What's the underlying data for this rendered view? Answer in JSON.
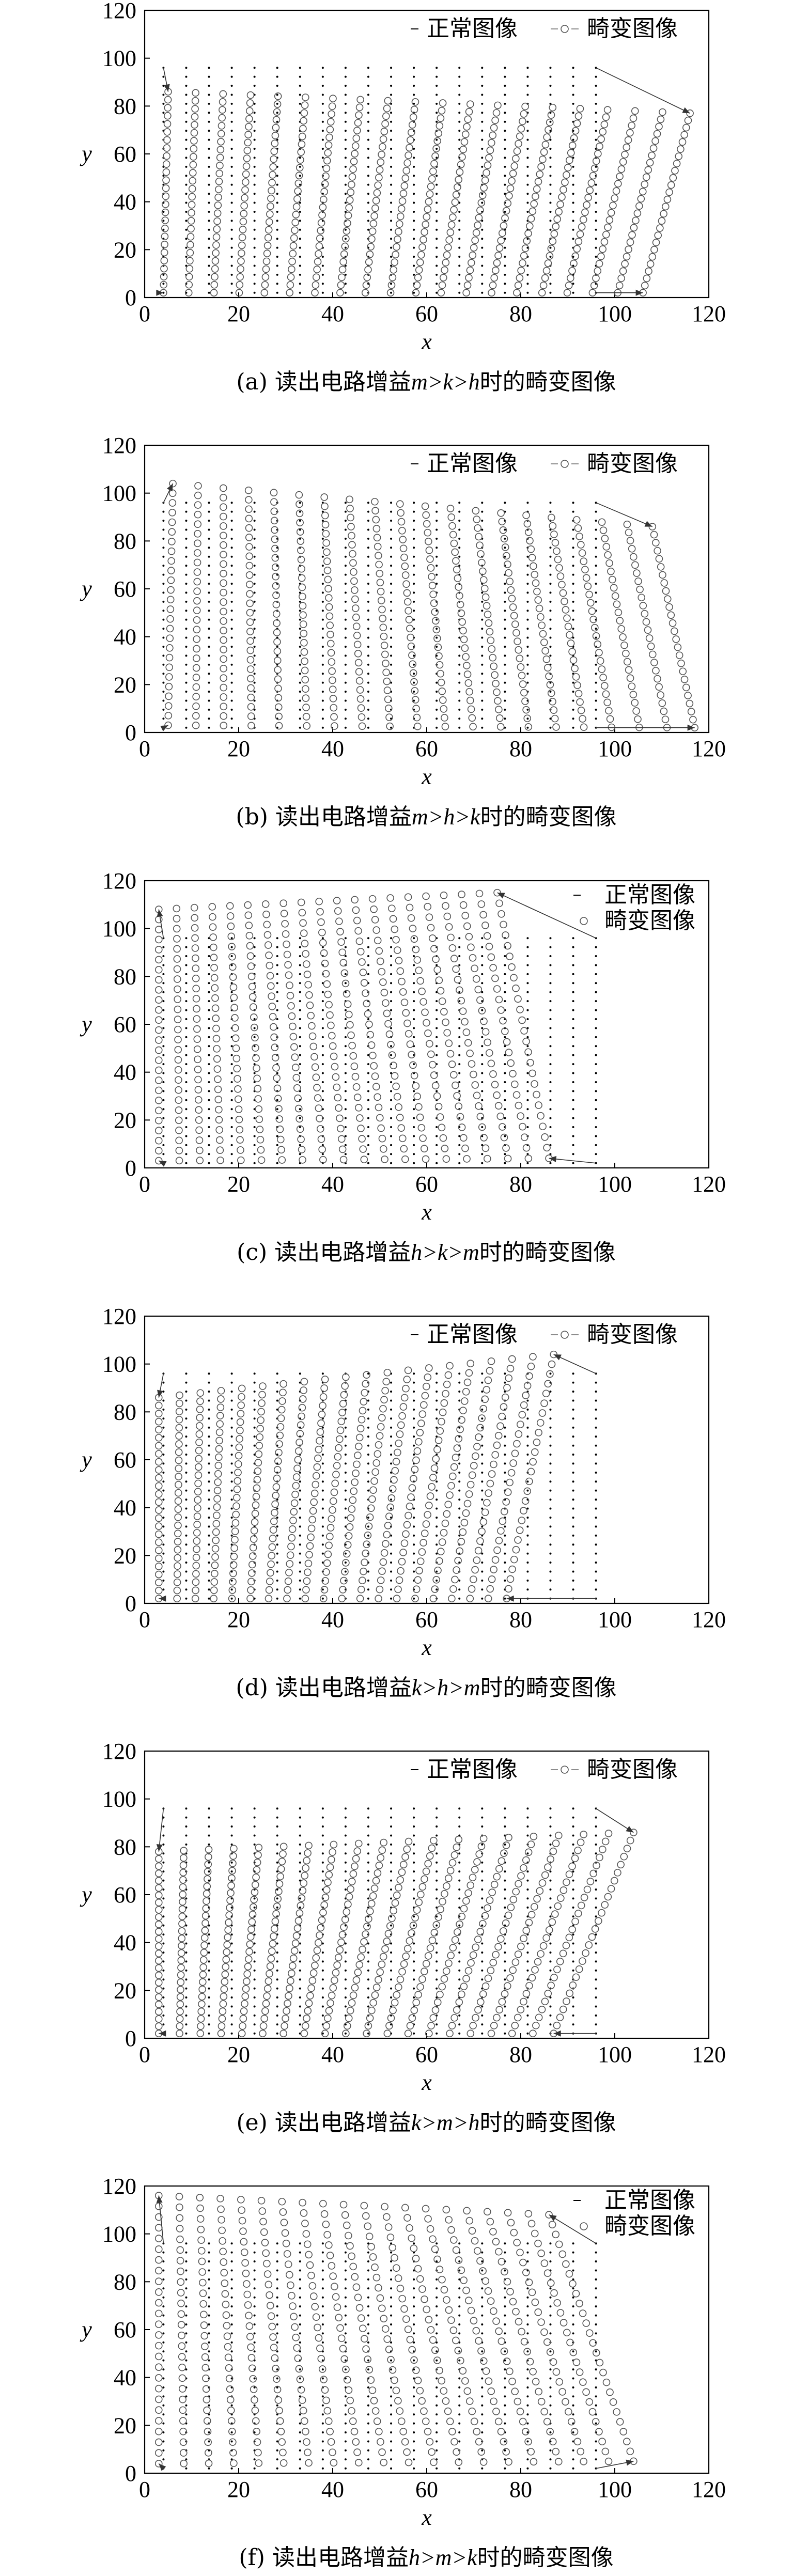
{
  "legend_normal": "正常图像",
  "legend_distorted": "畸变图像",
  "xlabel": "x",
  "ylabel": "y",
  "ticks": [
    "0",
    "20",
    "40",
    "60",
    "80",
    "100",
    "120"
  ],
  "chart_data": [
    {
      "type": "scatter",
      "caption_prefix": "(a) 读出电路增益",
      "caption_gain": "m>k>h",
      "caption_suffix": "时的畸变图像",
      "legend_position": "top-right",
      "xlim": [
        0,
        120
      ],
      "ylim": [
        0,
        120
      ],
      "series": [
        {
          "name": "正常图像",
          "grid": {
            "x": [
              4,
              96
            ],
            "y": [
              2,
              96
            ]
          }
        },
        {
          "name": "畸变图像",
          "corners": {
            "bl": [
              4,
              2
            ],
            "tl": [
              5,
              86
            ],
            "tr": [
              116,
              77
            ],
            "br": [
              106,
              2
            ]
          }
        }
      ]
    },
    {
      "type": "scatter",
      "caption_prefix": "(b) 读出电路增益",
      "caption_gain": "m>h>k",
      "caption_suffix": "时的畸变图像",
      "legend_position": "top-right",
      "xlim": [
        0,
        120
      ],
      "ylim": [
        0,
        120
      ],
      "series": [
        {
          "name": "正常图像",
          "grid": {
            "x": [
              4,
              96
            ],
            "y": [
              2,
              96
            ]
          }
        },
        {
          "name": "畸变图像",
          "corners": {
            "bl": [
              5,
              3
            ],
            "tl": [
              6,
              104
            ],
            "tr": [
              108,
              86
            ],
            "br": [
              117,
              2
            ]
          }
        }
      ]
    },
    {
      "type": "scatter",
      "caption_prefix": "(c) 读出电路增益",
      "caption_gain": "h>k>m",
      "caption_suffix": "时的畸变图像",
      "legend_position": "top-right",
      "xlim": [
        0,
        120
      ],
      "ylim": [
        0,
        120
      ],
      "series": [
        {
          "name": "正常图像",
          "grid": {
            "x": [
              4,
              96
            ],
            "y": [
              2,
              96
            ]
          }
        },
        {
          "name": "畸变图像",
          "corners": {
            "bl": [
              3,
              3
            ],
            "tl": [
              3,
              108
            ],
            "tr": [
              75,
              115
            ],
            "br": [
              86,
              4
            ]
          }
        }
      ]
    },
    {
      "type": "scatter",
      "caption_prefix": "(d) 读出电路增益",
      "caption_gain": "k>h>m",
      "caption_suffix": "时的畸变图像",
      "legend_position": "top-right",
      "xlim": [
        0,
        120
      ],
      "ylim": [
        0,
        120
      ],
      "series": [
        {
          "name": "正常图像",
          "grid": {
            "x": [
              4,
              96
            ],
            "y": [
              2,
              96
            ]
          }
        },
        {
          "name": "畸变图像",
          "corners": {
            "bl": [
              3,
              2
            ],
            "tl": [
              3,
              86
            ],
            "tr": [
              87,
              104
            ],
            "br": [
              77,
              2
            ]
          }
        }
      ]
    },
    {
      "type": "scatter",
      "caption_prefix": "(e) 读出电路增益",
      "caption_gain": "k>m>h",
      "caption_suffix": "时的畸变图像",
      "legend_position": "top-right",
      "xlim": [
        0,
        120
      ],
      "ylim": [
        0,
        120
      ],
      "series": [
        {
          "name": "正常图像",
          "grid": {
            "x": [
              4,
              96
            ],
            "y": [
              2,
              96
            ]
          }
        },
        {
          "name": "畸变图像",
          "corners": {
            "bl": [
              3,
              2
            ],
            "tl": [
              3,
              78
            ],
            "tr": [
              104,
              86
            ],
            "br": [
              87,
              2
            ]
          }
        }
      ]
    },
    {
      "type": "scatter",
      "caption_prefix": "(f) 读出电路增益",
      "caption_gain": "h>m>k",
      "caption_suffix": "时的畸变图像",
      "legend_position": "top-right",
      "xlim": [
        0,
        120
      ],
      "ylim": [
        0,
        120
      ],
      "series": [
        {
          "name": "正常图像",
          "grid": {
            "x": [
              4,
              96
            ],
            "y": [
              2,
              96
            ]
          }
        },
        {
          "name": "畸变图像",
          "corners": {
            "bl": [
              3,
              4
            ],
            "tl": [
              3,
              116
            ],
            "tr": [
              86,
              108
            ],
            "br": [
              104,
              5
            ]
          }
        }
      ]
    }
  ]
}
